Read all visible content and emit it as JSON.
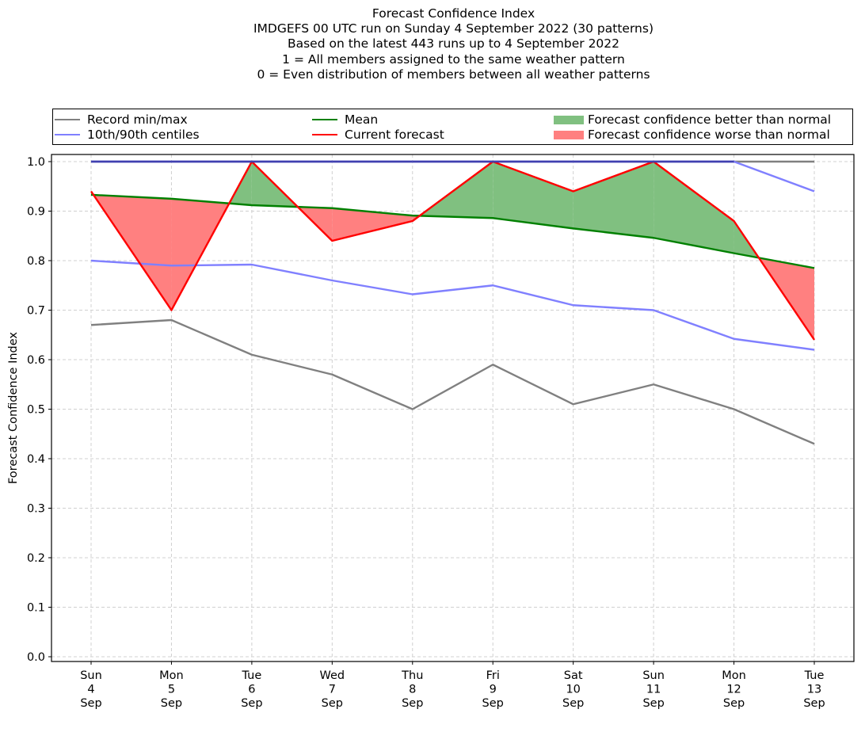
{
  "chart_data": {
    "type": "line",
    "title_lines": [
      "Forecast Confidence Index",
      "IMDGEFS 00 UTC run on Sunday 4 September 2022 (30 patterns)",
      "Based on the latest 443 runs up to 4 September 2022",
      "1 = All members assigned to the same weather pattern",
      "0 = Even distribution of members between all weather patterns"
    ],
    "xlabel": "",
    "ylabel": "Forecast Confidence Index",
    "ylim": [
      0.0,
      1.0
    ],
    "yticks": [
      "0.0",
      "0.1",
      "0.2",
      "0.3",
      "0.4",
      "0.5",
      "0.6",
      "0.7",
      "0.8",
      "0.9",
      "1.0"
    ],
    "grid": true,
    "legend_position": "top",
    "categories": [
      {
        "day": "Sun",
        "date": "4",
        "month": "Sep"
      },
      {
        "day": "Mon",
        "date": "5",
        "month": "Sep"
      },
      {
        "day": "Tue",
        "date": "6",
        "month": "Sep"
      },
      {
        "day": "Wed",
        "date": "7",
        "month": "Sep"
      },
      {
        "day": "Thu",
        "date": "8",
        "month": "Sep"
      },
      {
        "day": "Fri",
        "date": "9",
        "month": "Sep"
      },
      {
        "day": "Sat",
        "date": "10",
        "month": "Sep"
      },
      {
        "day": "Sun",
        "date": "11",
        "month": "Sep"
      },
      {
        "day": "Mon",
        "date": "12",
        "month": "Sep"
      },
      {
        "day": "Tue",
        "date": "13",
        "month": "Sep"
      }
    ],
    "series": [
      {
        "name": "Record max",
        "values": [
          1.0,
          1.0,
          1.0,
          1.0,
          1.0,
          1.0,
          1.0,
          1.0,
          1.0,
          1.0
        ],
        "color": "#808080"
      },
      {
        "name": "Record min",
        "values": [
          0.67,
          0.68,
          0.61,
          0.57,
          0.5,
          0.59,
          0.51,
          0.55,
          0.5,
          0.43
        ],
        "color": "#808080"
      },
      {
        "name": "90th centile",
        "values": [
          1.0,
          1.0,
          1.0,
          1.0,
          1.0,
          1.0,
          1.0,
          1.0,
          1.0,
          0.94
        ],
        "color": "#8080ff"
      },
      {
        "name": "10th centile",
        "values": [
          0.8,
          0.79,
          0.792,
          0.76,
          0.732,
          0.75,
          0.71,
          0.7,
          0.642,
          0.62
        ],
        "color": "#8080ff"
      },
      {
        "name": "Mean",
        "values": [
          0.933,
          0.925,
          0.912,
          0.906,
          0.891,
          0.886,
          0.865,
          0.846,
          0.815,
          0.785
        ],
        "color": "#008000"
      },
      {
        "name": "Current forecast",
        "values": [
          0.94,
          0.7,
          1.0,
          0.84,
          0.88,
          1.0,
          0.94,
          1.0,
          0.88,
          0.64
        ],
        "color": "#ff0000"
      }
    ],
    "fill_better_color": "#80c080",
    "fill_worse_color": "#ff8080"
  },
  "legend": {
    "items": [
      {
        "label": "Record min/max",
        "color": "#808080",
        "kind": "line"
      },
      {
        "label": "10th/90th centiles",
        "color": "#8080ff",
        "kind": "line"
      },
      {
        "label": "Mean",
        "color": "#008000",
        "kind": "line"
      },
      {
        "label": "Current forecast",
        "color": "#ff0000",
        "kind": "line"
      },
      {
        "label": "Forecast confidence better than normal",
        "color": "#80c080",
        "kind": "patch"
      },
      {
        "label": "Forecast confidence worse than normal",
        "color": "#ff8080",
        "kind": "patch"
      }
    ]
  }
}
